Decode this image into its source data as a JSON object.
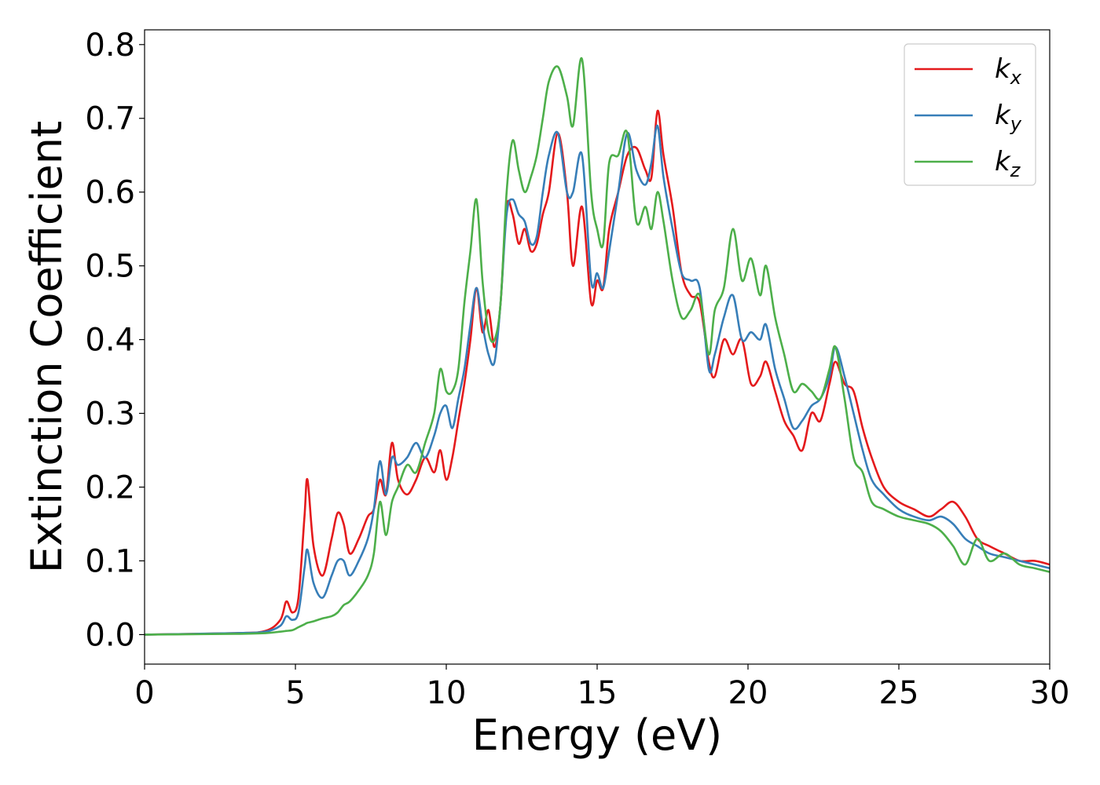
{
  "chart_data": {
    "type": "line",
    "title": "",
    "xlabel": "Energy (eV)",
    "ylabel": "Extinction Coefficient",
    "xlim": [
      0,
      30
    ],
    "ylim": [
      -0.04,
      0.82
    ],
    "xticks": [
      0,
      5,
      10,
      15,
      20,
      25,
      30
    ],
    "xtick_labels": [
      "0",
      "5",
      "10",
      "15",
      "20",
      "25",
      "30"
    ],
    "yticks": [
      0.0,
      0.1,
      0.2,
      0.3,
      0.4,
      0.5,
      0.6,
      0.7,
      0.8
    ],
    "ytick_labels": [
      "0.0",
      "0.1",
      "0.2",
      "0.3",
      "0.4",
      "0.5",
      "0.6",
      "0.7",
      "0.8"
    ],
    "grid": false,
    "legend_position": "top-right",
    "series": [
      {
        "name": "k_x",
        "label_main": "k",
        "label_sub": "x",
        "color": "#e41a1c",
        "x": [
          0,
          3,
          4,
          4.5,
          4.7,
          4.9,
          5.1,
          5.3,
          5.4,
          5.6,
          5.9,
          6.2,
          6.4,
          6.6,
          6.8,
          7.1,
          7.4,
          7.6,
          7.8,
          8.0,
          8.2,
          8.4,
          8.7,
          9.0,
          9.3,
          9.6,
          9.8,
          10.0,
          10.2,
          10.4,
          10.6,
          10.8,
          11.0,
          11.2,
          11.4,
          11.6,
          11.8,
          12.0,
          12.2,
          12.4,
          12.6,
          12.8,
          13.0,
          13.2,
          13.4,
          13.7,
          14.0,
          14.2,
          14.5,
          14.8,
          15.0,
          15.2,
          15.4,
          15.7,
          16.0,
          16.3,
          16.6,
          16.8,
          17.0,
          17.2,
          17.5,
          17.8,
          18.1,
          18.4,
          18.7,
          18.9,
          19.2,
          19.5,
          19.8,
          20.1,
          20.4,
          20.6,
          20.9,
          21.2,
          21.5,
          21.8,
          22.1,
          22.4,
          22.7,
          22.9,
          23.2,
          23.5,
          23.8,
          24.1,
          24.5,
          25.0,
          25.5,
          26.0,
          26.4,
          26.8,
          27.2,
          27.6,
          28.0,
          28.5,
          29.0,
          29.5,
          30.0
        ],
        "y": [
          0.0,
          0.002,
          0.005,
          0.02,
          0.045,
          0.03,
          0.05,
          0.16,
          0.21,
          0.12,
          0.08,
          0.13,
          0.165,
          0.15,
          0.11,
          0.13,
          0.16,
          0.17,
          0.21,
          0.19,
          0.26,
          0.21,
          0.19,
          0.21,
          0.24,
          0.22,
          0.25,
          0.21,
          0.24,
          0.29,
          0.34,
          0.4,
          0.47,
          0.41,
          0.44,
          0.39,
          0.45,
          0.58,
          0.57,
          0.53,
          0.55,
          0.52,
          0.53,
          0.57,
          0.6,
          0.68,
          0.6,
          0.5,
          0.58,
          0.45,
          0.48,
          0.47,
          0.55,
          0.6,
          0.65,
          0.66,
          0.63,
          0.62,
          0.71,
          0.65,
          0.58,
          0.49,
          0.46,
          0.45,
          0.37,
          0.35,
          0.4,
          0.38,
          0.4,
          0.34,
          0.35,
          0.37,
          0.33,
          0.29,
          0.27,
          0.25,
          0.3,
          0.29,
          0.34,
          0.37,
          0.34,
          0.33,
          0.28,
          0.24,
          0.2,
          0.18,
          0.17,
          0.16,
          0.17,
          0.18,
          0.16,
          0.13,
          0.12,
          0.11,
          0.1,
          0.1,
          0.095
        ]
      },
      {
        "name": "k_y",
        "label_main": "k",
        "label_sub": "y",
        "color": "#377eb8",
        "x": [
          0,
          3,
          4,
          4.5,
          4.7,
          4.9,
          5.1,
          5.3,
          5.4,
          5.6,
          5.9,
          6.2,
          6.4,
          6.6,
          6.8,
          7.1,
          7.4,
          7.6,
          7.8,
          8.0,
          8.2,
          8.4,
          8.7,
          9.0,
          9.3,
          9.6,
          9.8,
          10.0,
          10.2,
          10.4,
          10.6,
          10.8,
          11.0,
          11.2,
          11.4,
          11.6,
          11.8,
          12.0,
          12.2,
          12.4,
          12.6,
          12.8,
          13.0,
          13.2,
          13.4,
          13.7,
          14.0,
          14.2,
          14.5,
          14.8,
          15.0,
          15.2,
          15.4,
          15.7,
          16.0,
          16.3,
          16.6,
          16.8,
          17.0,
          17.2,
          17.5,
          17.8,
          18.1,
          18.4,
          18.7,
          18.9,
          19.2,
          19.5,
          19.8,
          20.1,
          20.4,
          20.6,
          20.9,
          21.2,
          21.5,
          21.8,
          22.1,
          22.4,
          22.7,
          22.9,
          23.2,
          23.5,
          23.8,
          24.1,
          24.5,
          25.0,
          25.5,
          26.0,
          26.4,
          26.8,
          27.2,
          27.6,
          28.0,
          28.5,
          29.0,
          29.5,
          30.0
        ],
        "y": [
          0.0,
          0.002,
          0.004,
          0.012,
          0.025,
          0.02,
          0.03,
          0.09,
          0.115,
          0.07,
          0.05,
          0.08,
          0.1,
          0.1,
          0.08,
          0.1,
          0.13,
          0.17,
          0.235,
          0.19,
          0.24,
          0.23,
          0.24,
          0.26,
          0.24,
          0.27,
          0.3,
          0.31,
          0.28,
          0.32,
          0.36,
          0.42,
          0.47,
          0.42,
          0.38,
          0.37,
          0.45,
          0.57,
          0.59,
          0.57,
          0.56,
          0.53,
          0.54,
          0.6,
          0.65,
          0.68,
          0.6,
          0.6,
          0.65,
          0.48,
          0.49,
          0.47,
          0.52,
          0.6,
          0.68,
          0.63,
          0.61,
          0.64,
          0.69,
          0.62,
          0.55,
          0.49,
          0.48,
          0.47,
          0.36,
          0.38,
          0.43,
          0.46,
          0.4,
          0.41,
          0.4,
          0.42,
          0.36,
          0.32,
          0.28,
          0.29,
          0.31,
          0.32,
          0.35,
          0.39,
          0.35,
          0.3,
          0.25,
          0.21,
          0.19,
          0.17,
          0.16,
          0.155,
          0.16,
          0.15,
          0.13,
          0.12,
          0.11,
          0.105,
          0.1,
          0.095,
          0.09
        ]
      },
      {
        "name": "k_z",
        "label_main": "k",
        "label_sub": "z",
        "color": "#4daf4a",
        "x": [
          0,
          3,
          4,
          4.5,
          4.7,
          4.9,
          5.1,
          5.3,
          5.4,
          5.6,
          5.9,
          6.2,
          6.4,
          6.6,
          6.8,
          7.1,
          7.4,
          7.6,
          7.8,
          8.0,
          8.2,
          8.4,
          8.7,
          9.0,
          9.3,
          9.6,
          9.8,
          10.0,
          10.2,
          10.4,
          10.6,
          10.8,
          11.0,
          11.2,
          11.4,
          11.6,
          11.8,
          12.0,
          12.2,
          12.4,
          12.6,
          12.8,
          13.0,
          13.2,
          13.4,
          13.7,
          14.0,
          14.2,
          14.5,
          14.8,
          15.0,
          15.2,
          15.4,
          15.7,
          16.0,
          16.3,
          16.6,
          16.8,
          17.0,
          17.2,
          17.5,
          17.8,
          18.1,
          18.4,
          18.7,
          18.9,
          19.2,
          19.5,
          19.8,
          20.1,
          20.4,
          20.6,
          20.9,
          21.2,
          21.5,
          21.8,
          22.1,
          22.4,
          22.7,
          22.9,
          23.2,
          23.5,
          23.8,
          24.1,
          24.5,
          25.0,
          25.5,
          26.0,
          26.4,
          26.8,
          27.2,
          27.6,
          28.0,
          28.5,
          29.0,
          29.5,
          30.0
        ],
        "y": [
          0.0,
          0.001,
          0.002,
          0.004,
          0.005,
          0.006,
          0.01,
          0.014,
          0.016,
          0.018,
          0.022,
          0.025,
          0.03,
          0.04,
          0.045,
          0.06,
          0.08,
          0.11,
          0.18,
          0.135,
          0.18,
          0.2,
          0.23,
          0.22,
          0.26,
          0.3,
          0.36,
          0.33,
          0.33,
          0.36,
          0.45,
          0.52,
          0.59,
          0.48,
          0.41,
          0.4,
          0.45,
          0.6,
          0.67,
          0.63,
          0.6,
          0.62,
          0.65,
          0.7,
          0.75,
          0.77,
          0.73,
          0.69,
          0.78,
          0.6,
          0.55,
          0.53,
          0.64,
          0.65,
          0.68,
          0.56,
          0.58,
          0.55,
          0.6,
          0.56,
          0.48,
          0.43,
          0.44,
          0.46,
          0.38,
          0.44,
          0.47,
          0.55,
          0.48,
          0.51,
          0.46,
          0.5,
          0.43,
          0.38,
          0.33,
          0.34,
          0.33,
          0.32,
          0.36,
          0.39,
          0.32,
          0.24,
          0.22,
          0.18,
          0.17,
          0.16,
          0.155,
          0.15,
          0.14,
          0.12,
          0.095,
          0.13,
          0.1,
          0.11,
          0.095,
          0.09,
          0.085
        ]
      }
    ]
  }
}
